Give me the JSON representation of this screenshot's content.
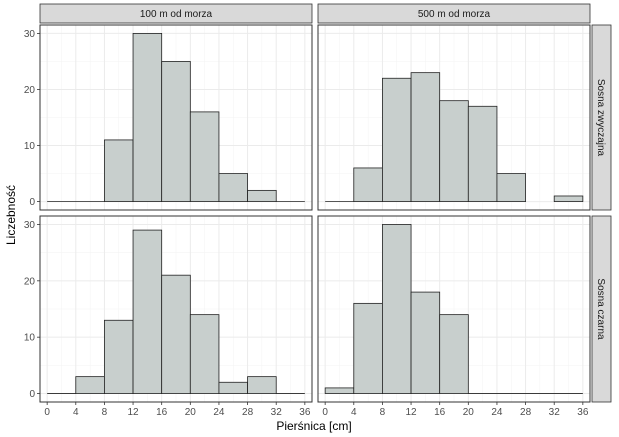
{
  "chart_data": {
    "type": "bar",
    "xlabel": "Pierśnica [cm]",
    "ylabel": "Liczebność",
    "x_ticks": [
      0,
      4,
      8,
      12,
      16,
      20,
      24,
      28,
      32,
      36
    ],
    "y_ticks": [
      0,
      10,
      20,
      30
    ],
    "xlim": [
      -1,
      37
    ],
    "bin_width": 4,
    "grid": true,
    "col_labels": [
      "100 m od morza",
      "500 m od morza"
    ],
    "row_labels": [
      "Sosna zwyczajna",
      "Sosna czarna"
    ],
    "colors": {
      "bar_fill": "#c8cfcd",
      "bar_stroke": "#222222",
      "panel_bg": "#ffffff",
      "grid": "#ebebeb",
      "strip_bg": "#d9d9d9"
    },
    "panels": [
      {
        "row": "Sosna zwyczajna",
        "col": "100 m od morza",
        "ylim": [
          -1.5,
          31.5
        ],
        "bins": [
          {
            "x": 0,
            "value": 0
          },
          {
            "x": 4,
            "value": 0
          },
          {
            "x": 8,
            "value": 11
          },
          {
            "x": 12,
            "value": 30
          },
          {
            "x": 16,
            "value": 25
          },
          {
            "x": 20,
            "value": 16
          },
          {
            "x": 24,
            "value": 5
          },
          {
            "x": 28,
            "value": 2
          },
          {
            "x": 32,
            "value": 0
          }
        ]
      },
      {
        "row": "Sosna zwyczajna",
        "col": "500 m od morza",
        "ylim": [
          -1.5,
          31.5
        ],
        "bins": [
          {
            "x": 0,
            "value": 0
          },
          {
            "x": 4,
            "value": 6
          },
          {
            "x": 8,
            "value": 22
          },
          {
            "x": 12,
            "value": 23
          },
          {
            "x": 16,
            "value": 18
          },
          {
            "x": 20,
            "value": 17
          },
          {
            "x": 24,
            "value": 5
          },
          {
            "x": 28,
            "value": 0
          },
          {
            "x": 32,
            "value": 1
          }
        ]
      },
      {
        "row": "Sosna czarna",
        "col": "100 m od morza",
        "ylim": [
          -1.5,
          31.5
        ],
        "bins": [
          {
            "x": 0,
            "value": 0
          },
          {
            "x": 4,
            "value": 3
          },
          {
            "x": 8,
            "value": 13
          },
          {
            "x": 12,
            "value": 29
          },
          {
            "x": 16,
            "value": 21
          },
          {
            "x": 20,
            "value": 14
          },
          {
            "x": 24,
            "value": 2
          },
          {
            "x": 28,
            "value": 3
          },
          {
            "x": 32,
            "value": 0
          }
        ]
      },
      {
        "row": "Sosna czarna",
        "col": "500 m od morza",
        "ylim": [
          -1.5,
          31.5
        ],
        "bins": [
          {
            "x": 0,
            "value": 1
          },
          {
            "x": 4,
            "value": 16
          },
          {
            "x": 8,
            "value": 30
          },
          {
            "x": 12,
            "value": 18
          },
          {
            "x": 16,
            "value": 14
          },
          {
            "x": 20,
            "value": 0
          },
          {
            "x": 24,
            "value": 0
          },
          {
            "x": 28,
            "value": 0
          },
          {
            "x": 32,
            "value": 0
          }
        ]
      }
    ]
  }
}
